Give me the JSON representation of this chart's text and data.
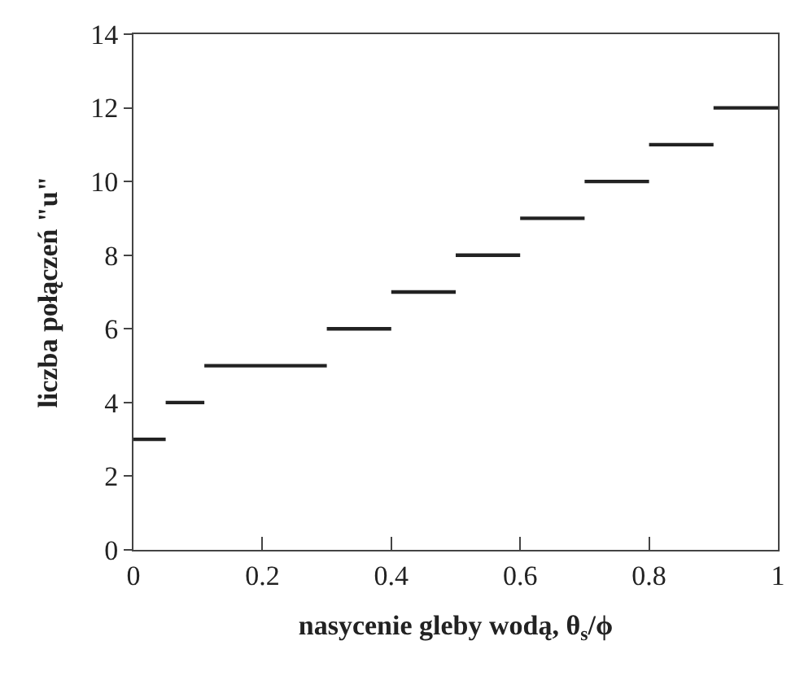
{
  "chart_data": {
    "type": "line",
    "xlabel": "nasycenie gleby wodą, θ$_{s}$/ϕ",
    "ylabel": "liczba połączeń \"u\"",
    "series": [
      {
        "color": "#222222",
        "x": [
          0,
          0.05,
          null,
          0.05,
          0.11,
          null,
          0.11,
          0.3,
          null,
          0.3,
          0.4,
          null,
          0.4,
          0.5,
          null,
          0.5,
          0.6,
          null,
          0.6,
          0.7,
          null,
          0.7,
          0.8,
          null,
          0.8,
          0.9,
          null,
          0.9,
          1
        ],
        "values": [
          3,
          3,
          null,
          4,
          4,
          null,
          5,
          5,
          null,
          6,
          6,
          null,
          7,
          7,
          null,
          8,
          8,
          null,
          9,
          9,
          null,
          10,
          10,
          null,
          11,
          11,
          null,
          12,
          12
        ]
      }
    ],
    "xlim": [
      0,
      1
    ],
    "xticks": [
      0,
      0.2,
      0.4,
      0.6,
      0.8,
      1
    ],
    "ylim": [
      0,
      14
    ],
    "yticks": [
      0,
      2,
      4,
      6,
      8,
      10,
      12,
      14
    ],
    "marker": "none",
    "line_style": "solid"
  }
}
